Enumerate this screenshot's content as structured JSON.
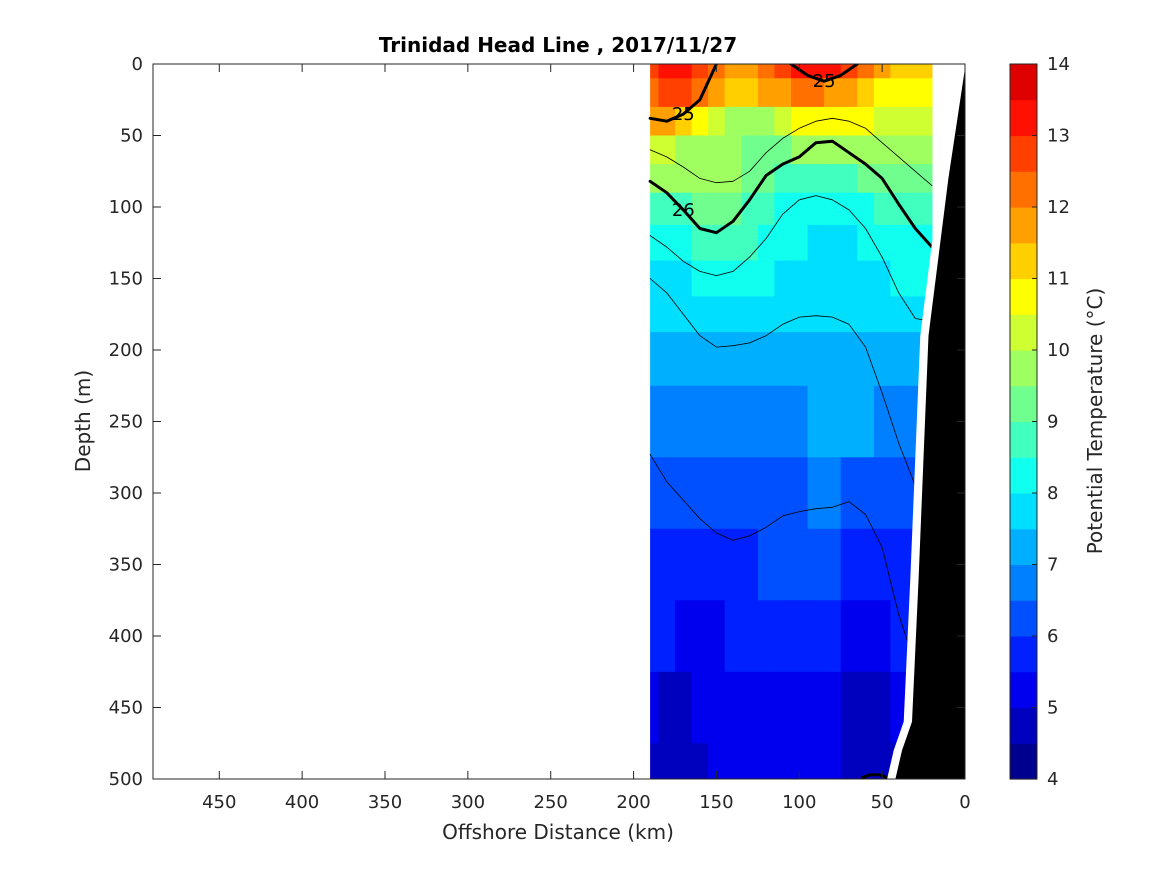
{
  "chart_data": {
    "type": "contourf",
    "title": "Trinidad Head Line , 2017/11/27",
    "xlabel": "Offshore Distance (km)",
    "ylabel": "Depth (m)",
    "colorbar_label": "Potential Temperature (°C)",
    "xlim": [
      490,
      0
    ],
    "ylim": [
      500,
      0
    ],
    "x_reversed": true,
    "y_reversed": true,
    "xticks": [
      450,
      400,
      350,
      300,
      250,
      200,
      150,
      100,
      50,
      0
    ],
    "yticks": [
      0,
      50,
      100,
      150,
      200,
      250,
      300,
      350,
      400,
      450,
      500
    ],
    "colorbar": {
      "range": [
        4,
        14
      ],
      "step": 0.5,
      "ticks": [
        4,
        5,
        6,
        7,
        8,
        9,
        10,
        11,
        12,
        13,
        14
      ],
      "colors": [
        "#00008f",
        "#0000bf",
        "#0000ef",
        "#0020ff",
        "#0050ff",
        "#0080ff",
        "#00b0ff",
        "#00dfff",
        "#10ffef",
        "#40ffbf",
        "#70ff8f",
        "#9fff60",
        "#cfff30",
        "#ffff00",
        "#ffcf00",
        "#ff9f00",
        "#ff7000",
        "#ff4000",
        "#ff1000",
        "#df0000"
      ]
    },
    "temperature_field": {
      "x_km": [
        190,
        180,
        170,
        160,
        150,
        140,
        130,
        120,
        110,
        100,
        90,
        80,
        70,
        60,
        50,
        40,
        30
      ],
      "depth_m": [
        0,
        20,
        40,
        60,
        80,
        100,
        125,
        150,
        175,
        200,
        250,
        300,
        350,
        400,
        450,
        500
      ],
      "rows": [
        [
          12.5,
          13.0,
          13.0,
          12.5,
          12.0,
          11.5,
          11.5,
          12.0,
          12.5,
          13.0,
          13.0,
          13.0,
          12.5,
          12.0,
          11.5,
          11.0,
          11.0
        ],
        [
          12.0,
          12.5,
          12.5,
          12.0,
          11.5,
          11.0,
          11.0,
          11.5,
          11.5,
          12.0,
          12.0,
          11.5,
          11.5,
          11.0,
          10.5,
          10.5,
          10.5
        ],
        [
          11.5,
          11.5,
          11.0,
          10.5,
          10.0,
          9.5,
          9.5,
          9.5,
          10.0,
          10.5,
          10.5,
          10.5,
          10.5,
          10.5,
          10.0,
          10.0,
          10.0
        ],
        [
          10.0,
          10.0,
          9.5,
          9.5,
          9.5,
          9.5,
          9.0,
          9.0,
          9.0,
          9.5,
          9.5,
          9.5,
          9.5,
          9.5,
          9.5,
          9.5,
          9.5
        ],
        [
          9.5,
          9.5,
          9.5,
          9.5,
          9.5,
          9.5,
          9.0,
          9.0,
          8.5,
          8.5,
          8.5,
          8.5,
          8.5,
          9.0,
          9.0,
          9.0,
          9.0
        ],
        [
          8.5,
          8.5,
          8.5,
          9.0,
          9.0,
          9.0,
          8.5,
          8.5,
          8.0,
          8.0,
          8.0,
          8.0,
          8.0,
          8.0,
          8.5,
          8.5,
          8.5
        ],
        [
          8.0,
          8.0,
          8.0,
          8.5,
          8.5,
          8.5,
          8.5,
          8.0,
          8.0,
          8.0,
          7.5,
          7.5,
          7.5,
          8.0,
          8.0,
          8.0,
          8.0
        ],
        [
          7.5,
          7.5,
          7.5,
          8.0,
          8.0,
          8.0,
          8.0,
          8.0,
          7.5,
          7.5,
          7.5,
          7.5,
          7.5,
          7.5,
          7.5,
          8.0,
          8.0
        ],
        [
          7.5,
          7.5,
          7.5,
          7.5,
          7.5,
          7.5,
          7.5,
          7.5,
          7.5,
          7.5,
          7.5,
          7.5,
          7.5,
          7.5,
          7.5,
          7.5,
          7.5
        ],
        [
          7.0,
          7.0,
          7.0,
          7.0,
          7.0,
          7.0,
          7.0,
          7.0,
          7.0,
          7.0,
          7.0,
          7.0,
          7.0,
          7.0,
          7.0,
          7.0,
          7.0
        ],
        [
          6.5,
          6.5,
          6.5,
          6.5,
          6.5,
          6.5,
          6.5,
          6.5,
          6.5,
          6.5,
          7.0,
          7.0,
          7.0,
          7.0,
          6.5,
          6.5,
          6.5
        ],
        [
          6.0,
          6.0,
          6.0,
          6.0,
          6.0,
          6.0,
          6.0,
          6.0,
          6.0,
          6.0,
          6.5,
          6.5,
          6.0,
          6.0,
          6.0,
          6.0,
          6.0
        ],
        [
          5.5,
          5.5,
          5.5,
          5.5,
          5.5,
          5.5,
          5.5,
          6.0,
          6.0,
          6.0,
          6.0,
          6.0,
          5.5,
          5.5,
          5.5,
          5.5,
          5.5
        ],
        [
          5.5,
          5.5,
          5.0,
          5.0,
          5.0,
          5.5,
          5.5,
          5.5,
          5.5,
          5.5,
          5.5,
          5.5,
          5.0,
          5.0,
          5.0,
          5.5,
          5.5
        ],
        [
          5.0,
          4.5,
          4.5,
          5.0,
          5.0,
          5.0,
          5.0,
          5.0,
          5.0,
          5.0,
          5.0,
          5.0,
          4.5,
          4.5,
          4.5,
          5.0,
          5.0
        ],
        [
          4.5,
          4.5,
          4.5,
          4.5,
          5.0,
          5.0,
          5.0,
          5.0,
          5.0,
          5.0,
          5.0,
          5.0,
          4.5,
          4.5,
          4.5,
          4.5,
          4.5
        ]
      ]
    },
    "density_contours": [
      {
        "label": "25",
        "weight": "bold",
        "x_km": [
          190,
          180,
          170,
          160,
          150
        ],
        "depth_m": [
          38,
          40,
          35,
          25,
          0
        ]
      },
      {
        "label": "25",
        "weight": "bold",
        "x_km": [
          105,
          95,
          85,
          75,
          65
        ],
        "depth_m": [
          0,
          8,
          12,
          8,
          0
        ]
      },
      {
        "label": "26",
        "weight": "bold",
        "x_km": [
          190,
          180,
          170,
          160,
          150,
          140,
          130,
          120,
          110,
          100,
          90,
          80,
          70,
          60,
          50,
          40,
          30,
          20
        ],
        "depth_m": [
          82,
          90,
          102,
          115,
          118,
          110,
          95,
          78,
          70,
          65,
          55,
          54,
          62,
          70,
          80,
          98,
          115,
          128
        ]
      },
      {
        "label": "",
        "weight": "thin",
        "x_km": [
          190,
          180,
          170,
          160,
          150,
          140,
          130,
          120,
          110,
          100,
          90,
          80,
          70,
          60,
          50,
          40,
          30,
          20
        ],
        "depth_m": [
          60,
          65,
          72,
          80,
          83,
          82,
          75,
          62,
          52,
          45,
          40,
          38,
          40,
          45,
          55,
          65,
          75,
          85
        ]
      },
      {
        "label": "",
        "weight": "thin",
        "x_km": [
          190,
          180,
          170,
          160,
          150,
          140,
          130,
          120,
          110,
          100,
          90,
          80,
          70,
          60,
          50,
          40,
          30,
          20
        ],
        "depth_m": [
          120,
          128,
          138,
          145,
          148,
          145,
          135,
          122,
          105,
          95,
          92,
          95,
          102,
          115,
          135,
          160,
          178,
          180
        ]
      },
      {
        "label": "",
        "weight": "thin",
        "x_km": [
          190,
          180,
          170,
          160,
          150,
          140,
          130,
          120,
          110,
          100,
          90,
          80,
          70,
          60,
          50,
          40,
          30
        ],
        "depth_m": [
          150,
          160,
          175,
          190,
          198,
          197,
          195,
          190,
          182,
          177,
          176,
          177,
          182,
          198,
          230,
          265,
          295
        ]
      },
      {
        "label": "",
        "weight": "thin",
        "x_km": [
          190,
          180,
          170,
          160,
          150,
          140,
          130,
          120,
          110,
          100,
          90,
          80,
          70,
          60,
          50,
          40,
          30
        ],
        "depth_m": [
          273,
          292,
          305,
          318,
          328,
          333,
          330,
          324,
          316,
          313,
          311,
          310,
          306,
          315,
          338,
          385,
          420
        ]
      },
      {
        "label": "",
        "weight": "bold",
        "x_km": [
          62,
          57,
          52,
          47
        ],
        "depth_m": [
          499,
          497,
          497,
          499
        ]
      }
    ],
    "bottom_topography": {
      "x_km": [
        0,
        10,
        22,
        28,
        32,
        38,
        42
      ],
      "depth_m": [
        3,
        80,
        190,
        360,
        460,
        480,
        500
      ]
    }
  }
}
